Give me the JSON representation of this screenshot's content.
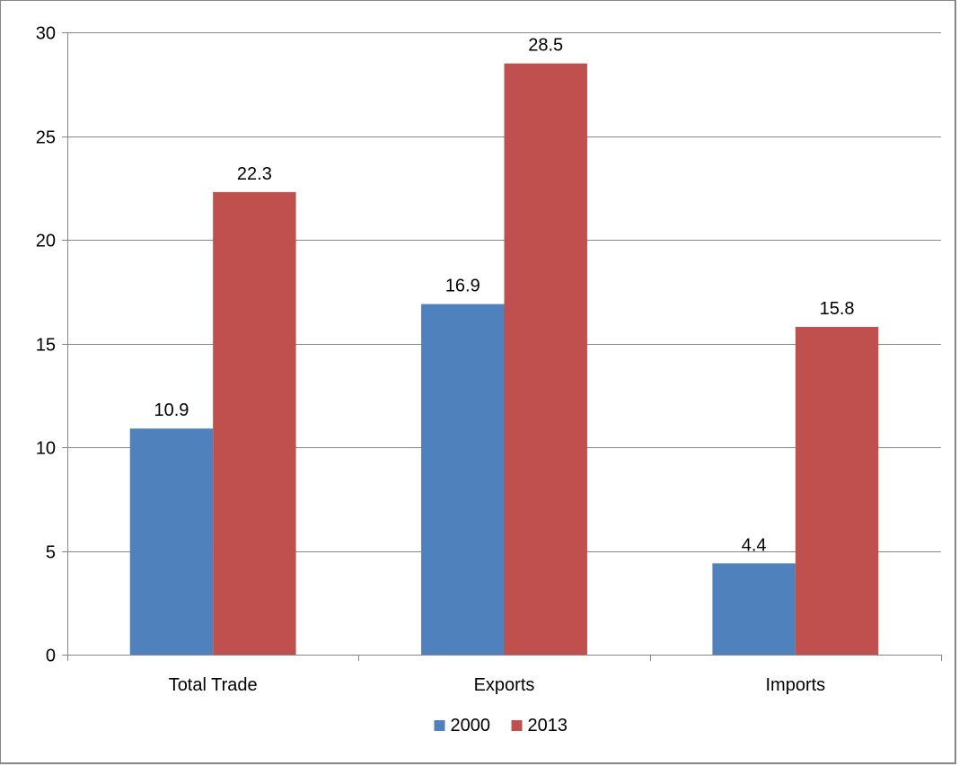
{
  "chart_data": {
    "type": "bar",
    "title": "",
    "xlabel": "",
    "ylabel": "",
    "categories": [
      "Total Trade",
      "Exports",
      "Imports"
    ],
    "series": [
      {
        "name": "2000",
        "values": [
          10.9,
          16.9,
          4.4
        ],
        "color": "#4F81BD"
      },
      {
        "name": "2013",
        "values": [
          22.3,
          28.5,
          15.8
        ],
        "color": "#C0504D"
      }
    ],
    "ylim": [
      0,
      30
    ],
    "yticks": [
      0,
      5,
      10,
      15,
      20,
      25,
      30
    ],
    "grid": true,
    "legend_position": "bottom",
    "data_labels": true
  }
}
